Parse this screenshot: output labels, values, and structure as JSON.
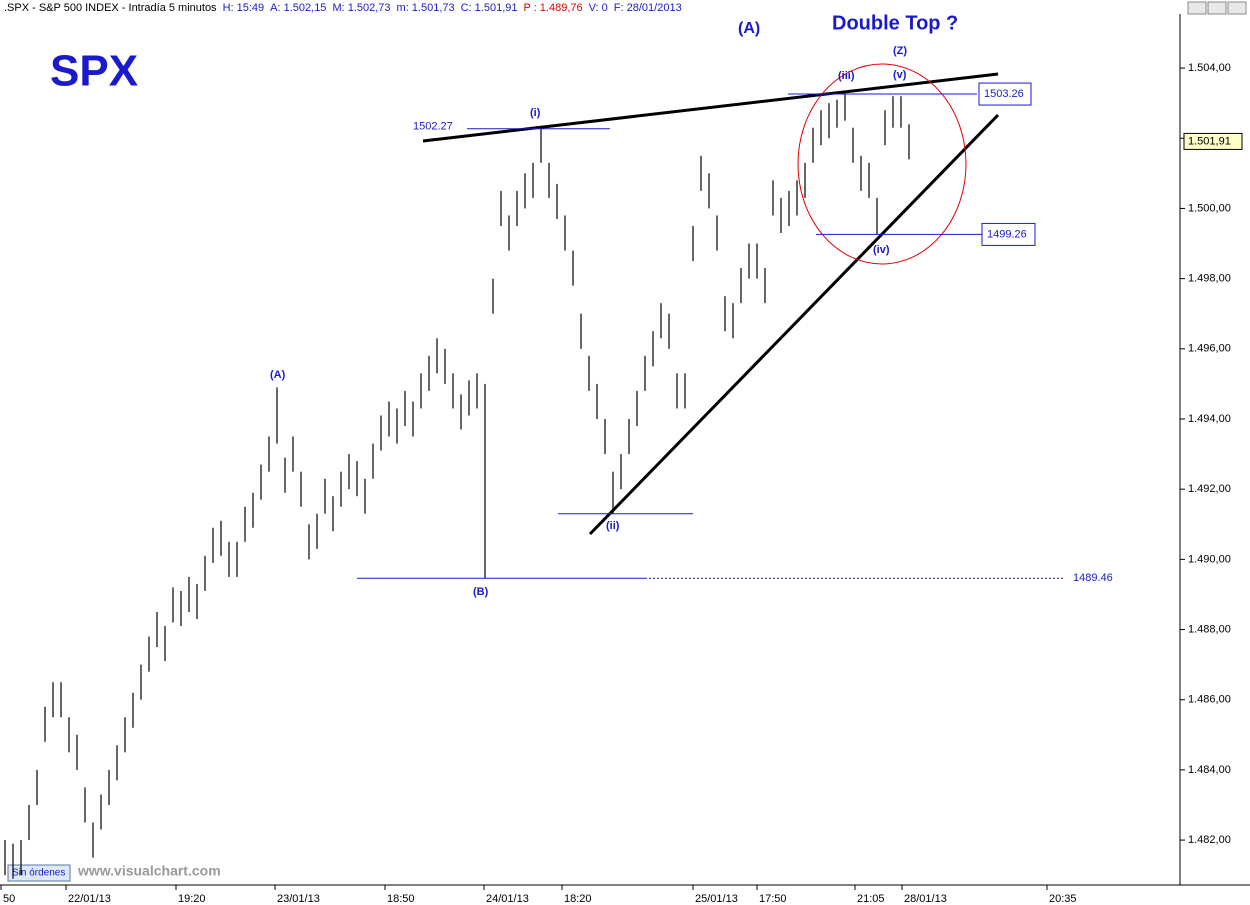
{
  "header": [
    {
      "text": ".SPX - S&P 500 INDEX - Intradía 5 minutos",
      "color": "#000000"
    },
    {
      "text": "H: 15:49",
      "color": "#1a1acc"
    },
    {
      "text": "A: 1.502,15",
      "color": "#1a1acc"
    },
    {
      "text": "M: 1.502,73",
      "color": "#1a1acc"
    },
    {
      "text": "m: 1.501,73",
      "color": "#1a1acc"
    },
    {
      "text": "C: 1.501,91",
      "color": "#1a1acc"
    },
    {
      "text": "P : 1.489,76",
      "color": "#e00000"
    },
    {
      "text": "V: 0",
      "color": "#1a1acc"
    },
    {
      "text": "F: 28/01/2013",
      "color": "#1a1acc"
    }
  ],
  "footer": {
    "status": "Sin órdenes",
    "site": "www.visualchart.com"
  },
  "chart_data": {
    "type": "range-bar",
    "title": "SPX",
    "color": "#000000",
    "annotations": [
      "(A)",
      "Double Top  ?",
      "(Z)",
      "(iii)",
      "(v)",
      "(i)",
      "(A)",
      "(B)",
      "(ii)",
      "(iv)"
    ],
    "levels": [
      1502.27,
      1503.26,
      1499.26,
      1489.46
    ],
    "last": {
      "value": 1501.91,
      "label": "1.501,91"
    },
    "high": [
      1482,
      1481.9,
      1482,
      1483,
      1484,
      1485.8,
      1486.5,
      1486.5,
      1485.5,
      1485,
      1483.5,
      1482.5,
      1483.3,
      1484,
      1484.7,
      1485.5,
      1486.2,
      1487,
      1487.8,
      1488.5,
      1488.1,
      1489.2,
      1489.1,
      1489.5,
      1489.3,
      1490.1,
      1490.9,
      1491.1,
      1490.5,
      1490.5,
      1491.5,
      1491.9,
      1492.7,
      1493.5,
      1494.9,
      1492.9,
      1493.5,
      1492.5,
      1491,
      1491.3,
      1492.3,
      1491.8,
      1492.5,
      1493,
      1492.8,
      1492.3,
      1493.3,
      1494.1,
      1494.5,
      1494.3,
      1494.8,
      1494.5,
      1495.3,
      1495.8,
      1496.3,
      1496,
      1495.3,
      1494.7,
      1495.1,
      1495.3,
      1495,
      1498,
      1500.5,
      1499.8,
      1500.5,
      1501,
      1501.3,
      1502.27,
      1501.3,
      1500.7,
      1499.8,
      1498.8,
      1497,
      1495.8,
      1495,
      1494,
      1492.5,
      1493,
      1494,
      1494.8,
      1495.8,
      1496.5,
      1497.3,
      1497,
      1495.3,
      1495.3,
      1499.5,
      1501.5,
      1501,
      1499.8,
      1497.5,
      1497.3,
      1498.3,
      1499,
      1499,
      1498.3,
      1500.8,
      1500.3,
      1500.5,
      1500.8,
      1501.3,
      1502.3,
      1502.8,
      1503,
      1503.1,
      1503.26,
      1502.3,
      1501.5,
      1501.3,
      1500.3,
      1502.8,
      1503.2,
      1503.2,
      1502.4
    ],
    "low": [
      1481,
      1480.9,
      1481,
      1482,
      1483,
      1484.8,
      1485.5,
      1485.5,
      1484.5,
      1484,
      1482.5,
      1481.5,
      1482.3,
      1483,
      1483.7,
      1484.5,
      1485.2,
      1486,
      1486.8,
      1487.5,
      1487.1,
      1488.2,
      1488.1,
      1488.5,
      1488.3,
      1489.1,
      1489.9,
      1490.1,
      1489.5,
      1489.5,
      1490.5,
      1490.9,
      1491.7,
      1492.5,
      1493.3,
      1491.9,
      1492.5,
      1491.5,
      1490,
      1490.3,
      1491.3,
      1490.8,
      1491.5,
      1492,
      1491.8,
      1491.3,
      1492.3,
      1493.1,
      1493.5,
      1493.3,
      1493.8,
      1493.5,
      1494.3,
      1494.8,
      1495.3,
      1495,
      1494.3,
      1493.7,
      1494.1,
      1494.3,
      1489.46,
      1497,
      1499.5,
      1498.8,
      1499.5,
      1500,
      1500.3,
      1501.3,
      1500.3,
      1499.7,
      1498.8,
      1497.8,
      1496,
      1494.8,
      1494,
      1493,
      1491.3,
      1492,
      1493,
      1493.8,
      1494.8,
      1495.5,
      1496.3,
      1496,
      1494.3,
      1494.3,
      1498.5,
      1500.5,
      1500,
      1498.8,
      1496.5,
      1496.3,
      1497.3,
      1498,
      1498,
      1497.3,
      1499.8,
      1499.3,
      1499.5,
      1499.8,
      1500.3,
      1501.3,
      1501.8,
      1502,
      1502.3,
      1502.5,
      1501.3,
      1500.5,
      1500.3,
      1499.26,
      1501.8,
      1502.3,
      1502.3,
      1501.4
    ],
    "xlim": [
      -0.625,
      146.875
    ],
    "xticks": [
      {
        "value": -0.5,
        "label": "50"
      },
      {
        "value": 7.625,
        "label": "22/01/13"
      },
      {
        "value": 21.375,
        "label": "19:20"
      },
      {
        "value": 33.75,
        "label": "23/01/13"
      },
      {
        "value": 47.5,
        "label": "18:50"
      },
      {
        "value": 59.875,
        "label": "24/01/13"
      },
      {
        "value": 69.625,
        "label": "18:20"
      },
      {
        "value": 86,
        "label": "25/01/13"
      },
      {
        "value": 94,
        "label": "17:50"
      },
      {
        "value": 106.25,
        "label": "21:05"
      },
      {
        "value": 112.125,
        "label": "28/01/13"
      },
      {
        "value": 130.25,
        "label": "20:35"
      }
    ],
    "ylim": [
      1480.72,
      1505.94
    ],
    "yticks": [
      {
        "value": 1482,
        "label": "1.482,00"
      },
      {
        "value": 1484,
        "label": "1.484,00"
      },
      {
        "value": 1486,
        "label": "1.486,00"
      },
      {
        "value": 1488,
        "label": "1.488,00"
      },
      {
        "value": 1490,
        "label": "1.490,00"
      },
      {
        "value": 1492,
        "label": "1.492,00"
      },
      {
        "value": 1494,
        "label": "1.494,00"
      },
      {
        "value": 1496,
        "label": "1.496,00"
      },
      {
        "value": 1498,
        "label": "1.498,00"
      },
      {
        "value": 1500,
        "label": "1.500,00"
      },
      {
        "value": 1502,
        "label": "1.502,00"
      },
      {
        "value": 1504,
        "label": "1.504,00"
      }
    ]
  }
}
